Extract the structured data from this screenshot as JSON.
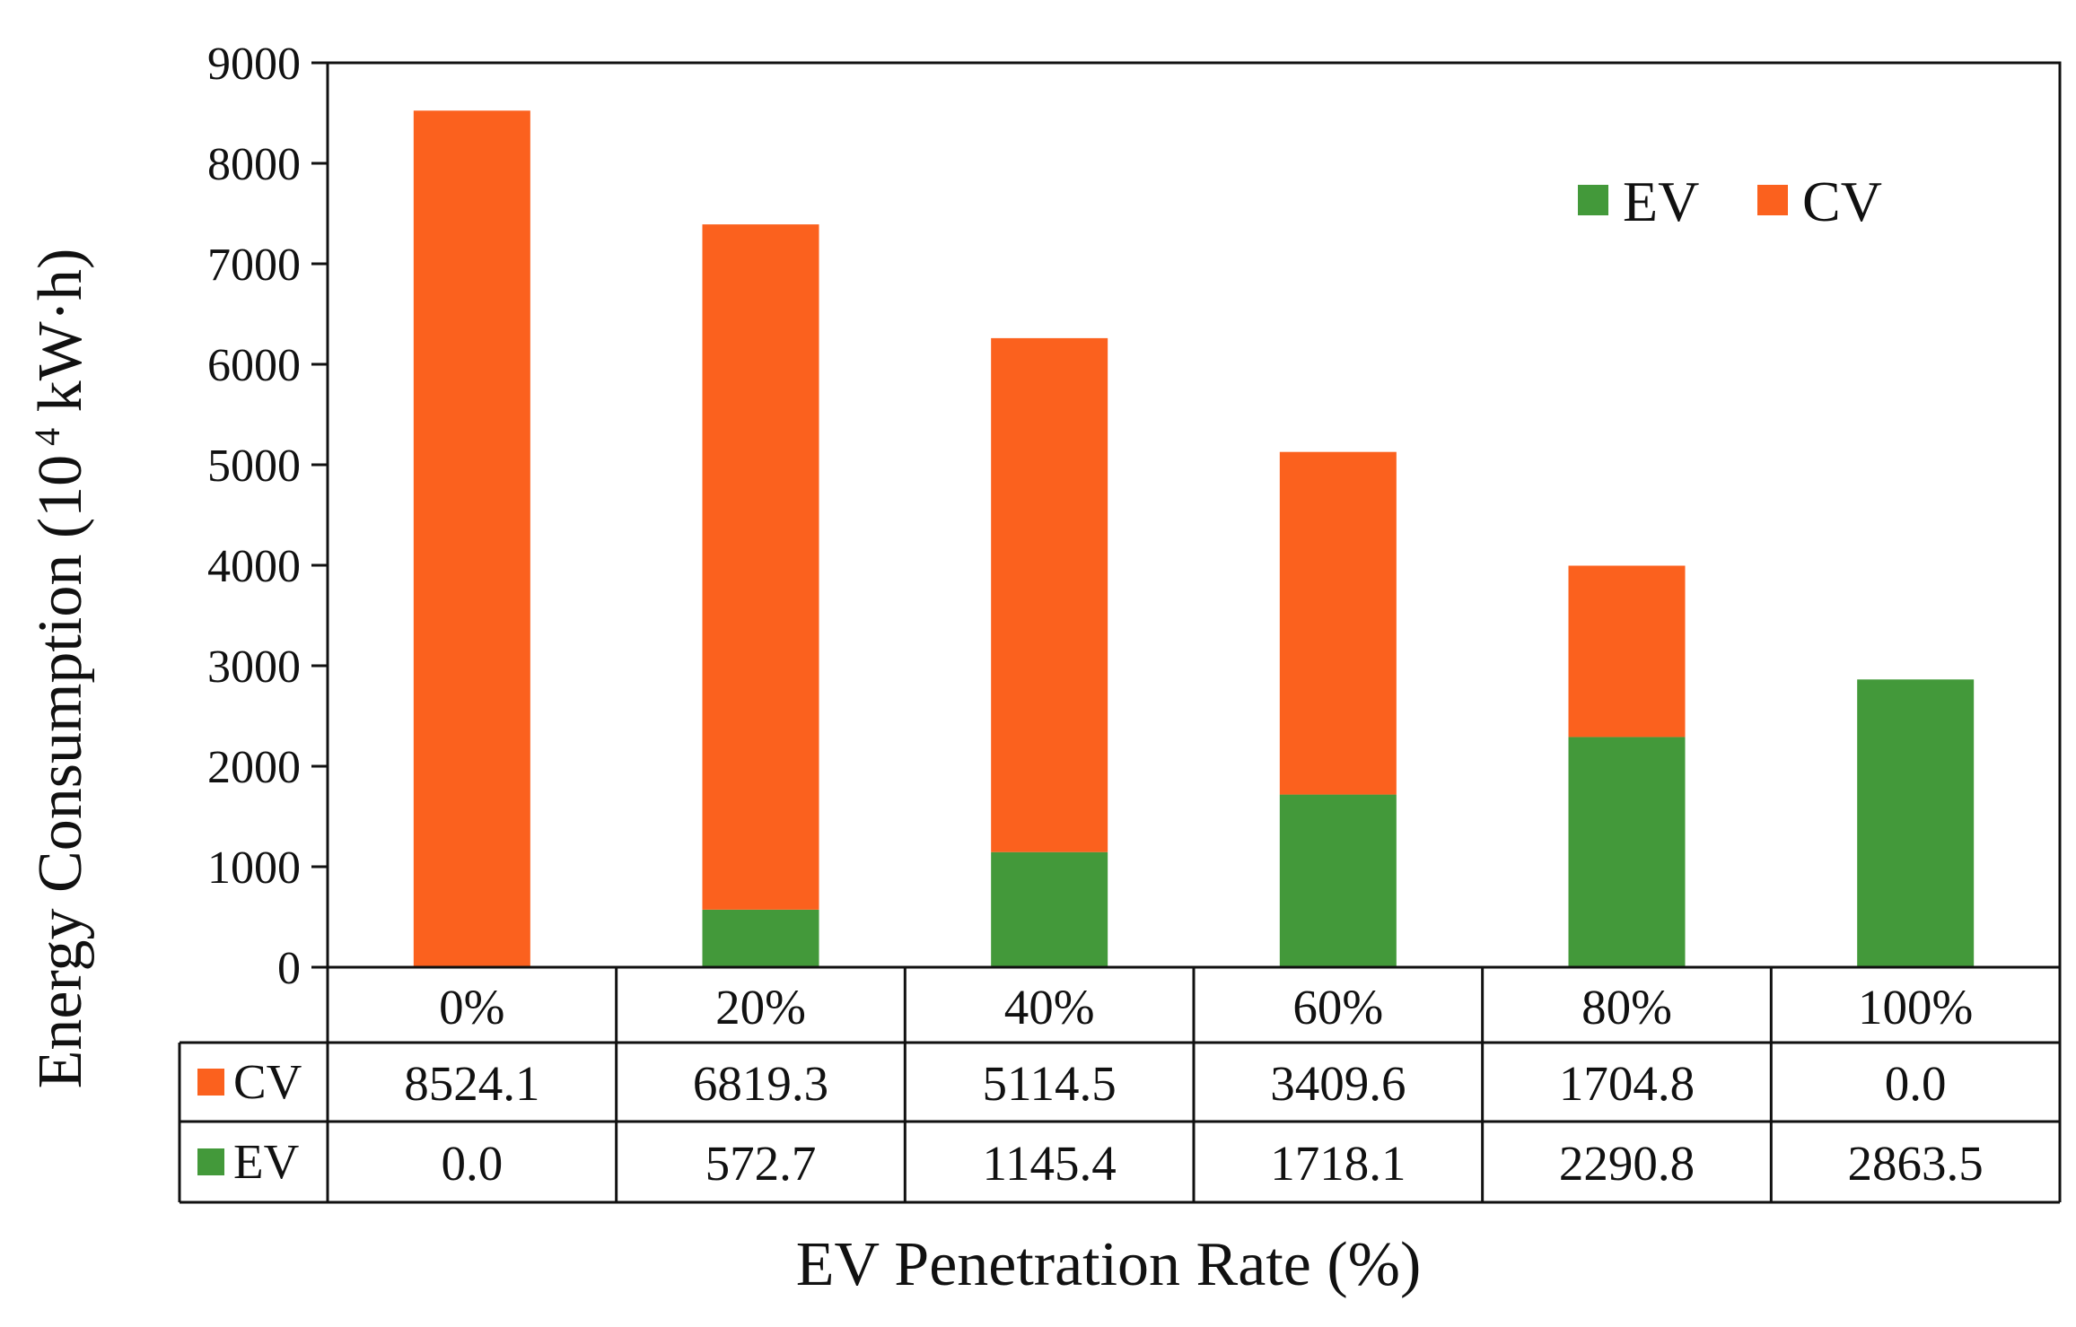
{
  "chart_data": {
    "type": "bar",
    "stacked": true,
    "title": "",
    "xlabel": "EV Penetration Rate (%)",
    "ylabel": {
      "prefix": "Energy Consumption (10",
      "exponent": "4",
      "suffix": " kW·h)"
    },
    "ylim": [
      0,
      9000
    ],
    "yticks": [
      0,
      1000,
      2000,
      3000,
      4000,
      5000,
      6000,
      7000,
      8000,
      9000
    ],
    "categories": [
      "0%",
      "20%",
      "40%",
      "60%",
      "80%",
      "100%"
    ],
    "series": [
      {
        "name": "EV",
        "color": "#43993A",
        "values": [
          0.0,
          572.7,
          1145.4,
          1718.1,
          2290.8,
          2863.5
        ],
        "labels": [
          "0.0",
          "572.7",
          "1145.4",
          "1718.1",
          "2290.8",
          "2863.5"
        ]
      },
      {
        "name": "CV",
        "color": "#FB611E",
        "values": [
          8524.1,
          6819.3,
          5114.5,
          3409.6,
          1704.8,
          0.0
        ],
        "labels": [
          "8524.1",
          "6819.3",
          "5114.5",
          "3409.6",
          "1704.8",
          "0.0"
        ]
      }
    ],
    "legend": {
      "position": "top-right",
      "order": [
        "EV",
        "CV"
      ]
    },
    "data_table": {
      "row_order": [
        "CV",
        "EV"
      ]
    }
  }
}
